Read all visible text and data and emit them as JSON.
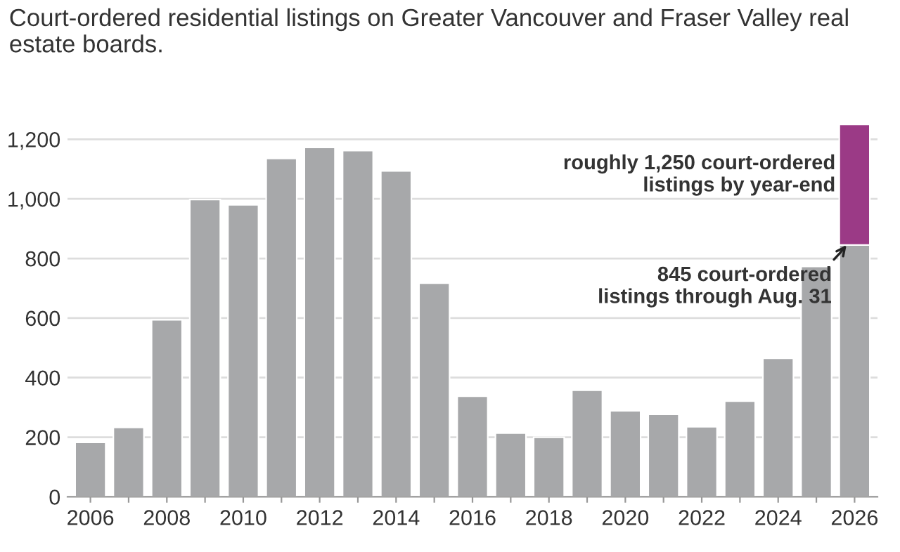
{
  "chart_data": {
    "type": "bar",
    "title": "Court-ordered residential listings on Greater Vancouver and Fraser Valley real estate boards.",
    "categories": [
      "2006",
      null,
      "2008",
      null,
      "2010",
      null,
      "2012",
      null,
      "2014",
      null,
      "2016",
      null,
      "2018",
      null,
      "2020",
      null,
      "2022",
      null,
      "2024",
      null,
      "2026"
    ],
    "stacked": true,
    "series": [
      {
        "color": "#a7a8aa",
        "values": [
          183,
          233,
          594,
          998,
          980,
          1136,
          1173,
          1162,
          1094,
          717,
          338,
          214,
          200,
          358,
          289,
          277,
          235,
          321,
          465,
          773,
          845
        ]
      },
      {
        "color": "#9b3a86",
        "values": [
          null,
          null,
          null,
          null,
          null,
          null,
          null,
          null,
          null,
          null,
          null,
          null,
          null,
          null,
          null,
          null,
          null,
          null,
          null,
          null,
          405
        ]
      }
    ],
    "ylim": [
      0,
      1260
    ],
    "yticks": [
      0,
      {
        "value": 200,
        "label": "200"
      },
      {
        "value": 400,
        "label": "400"
      },
      {
        "value": 600,
        "label": "600"
      },
      {
        "value": 800,
        "label": "800"
      },
      {
        "value": 1000,
        "label": "1,000"
      },
      {
        "value": 1200,
        "label": "1,200"
      }
    ],
    "grid": "y",
    "legend": false,
    "annotations": [
      "roughly 1,250 court-ordered\nlistings by year-end",
      {
        "text": "845 court-ordered\nlistings through Aug. 31",
        "x": "2026",
        "y": 845
      }
    ]
  }
}
